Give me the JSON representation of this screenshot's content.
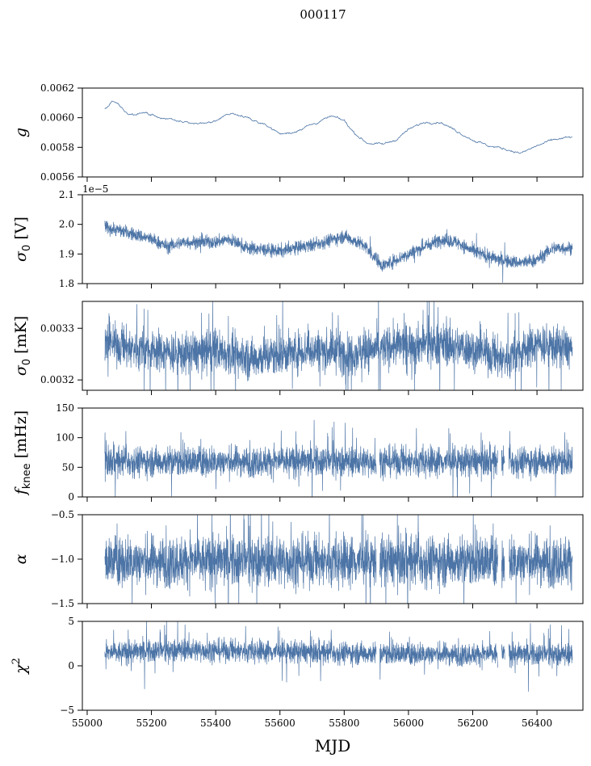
{
  "chart_data": {
    "type": "line",
    "title": "000117",
    "xlabel": "MJD",
    "xlim": [
      54985,
      56543
    ],
    "xticks": [
      55000,
      55200,
      55400,
      55600,
      55800,
      56000,
      56200,
      56400
    ],
    "x_range": [
      55055,
      56510
    ],
    "gaps": [
      [
        55900,
        55910
      ],
      [
        56278,
        56290
      ],
      [
        56300,
        56312
      ]
    ],
    "color": "#4c74a6",
    "panels": [
      {
        "name": "g",
        "ylabel": {
          "main": "g",
          "sub": "",
          "sup": "",
          "rest": ""
        },
        "ylim": [
          0.0056,
          0.0062
        ],
        "yticks": [
          0.0056,
          0.0058,
          0.006,
          0.0062
        ],
        "yticklabels": [
          "0.0056",
          "0.0058",
          "0.0060",
          "0.0062"
        ],
        "offset_text": "",
        "noise": 6e-06,
        "spike": 0,
        "trend": [
          [
            55055,
            0.00606
          ],
          [
            55080,
            0.00611
          ],
          [
            55100,
            0.00608
          ],
          [
            55130,
            0.00602
          ],
          [
            55170,
            0.00603
          ],
          [
            55200,
            0.00602
          ],
          [
            55250,
            0.00599
          ],
          [
            55300,
            0.00597
          ],
          [
            55350,
            0.00596
          ],
          [
            55400,
            0.00597
          ],
          [
            55440,
            0.00603
          ],
          [
            55480,
            0.00602
          ],
          [
            55520,
            0.00598
          ],
          [
            55560,
            0.00595
          ],
          [
            55600,
            0.00589
          ],
          [
            55640,
            0.0059
          ],
          [
            55680,
            0.00594
          ],
          [
            55720,
            0.00597
          ],
          [
            55760,
            0.00601
          ],
          [
            55800,
            0.00598
          ],
          [
            55830,
            0.0059
          ],
          [
            55870,
            0.00583
          ],
          [
            55920,
            0.00582
          ],
          [
            55960,
            0.00585
          ],
          [
            56000,
            0.00592
          ],
          [
            56050,
            0.00597
          ],
          [
            56100,
            0.00597
          ],
          [
            56150,
            0.00591
          ],
          [
            56200,
            0.00585
          ],
          [
            56250,
            0.00581
          ],
          [
            56300,
            0.00579
          ],
          [
            56350,
            0.00576
          ],
          [
            56400,
            0.00581
          ],
          [
            56450,
            0.00585
          ],
          [
            56510,
            0.00587
          ]
        ]
      },
      {
        "name": "sigma0-v",
        "ylabel": {
          "main": "σ",
          "sub": "0",
          "sup": "",
          "rest": " [V]"
        },
        "ylim": [
          1.8e-05,
          2.1e-05
        ],
        "yticks": [
          1.8e-05,
          1.9e-05,
          2e-05,
          2.1e-05
        ],
        "yticklabels": [
          "1.8",
          "1.9",
          "2.0",
          "2.1"
        ],
        "offset_text": "1e−5",
        "noise": 1.6e-07,
        "spike": 0.01,
        "trend": [
          [
            55055,
            1.99e-05
          ],
          [
            55100,
            1.98e-05
          ],
          [
            55200,
            1.95e-05
          ],
          [
            55250,
            1.925e-05
          ],
          [
            55300,
            1.94e-05
          ],
          [
            55400,
            1.94e-05
          ],
          [
            55440,
            1.95e-05
          ],
          [
            55500,
            1.92e-05
          ],
          [
            55600,
            1.91e-05
          ],
          [
            55700,
            1.93e-05
          ],
          [
            55800,
            1.96e-05
          ],
          [
            55860,
            1.93e-05
          ],
          [
            55920,
            1.86e-05
          ],
          [
            56000,
            1.9e-05
          ],
          [
            56100,
            1.95e-05
          ],
          [
            56150,
            1.94e-05
          ],
          [
            56200,
            1.91e-05
          ],
          [
            56280,
            1.88e-05
          ],
          [
            56350,
            1.87e-05
          ],
          [
            56400,
            1.88e-05
          ],
          [
            56450,
            1.92e-05
          ],
          [
            56510,
            1.92e-05
          ]
        ]
      },
      {
        "name": "sigma0-mk",
        "ylabel": {
          "main": "σ",
          "sub": "0",
          "sup": "",
          "rest": " [mK]"
        },
        "ylim": [
          0.00318,
          0.003352
        ],
        "yticks": [
          0.0032,
          0.0033
        ],
        "yticklabels": [
          "0.0032",
          "0.0033"
        ],
        "offset_text": "",
        "noise": 2.8e-05,
        "spike": 0.03,
        "trend": [
          [
            55055,
            0.003272
          ],
          [
            55150,
            0.00326
          ],
          [
            55300,
            0.00325
          ],
          [
            55400,
            0.003258
          ],
          [
            55500,
            0.00324
          ],
          [
            55600,
            0.00325
          ],
          [
            55700,
            0.00326
          ],
          [
            55800,
            0.00325
          ],
          [
            55900,
            0.00326
          ],
          [
            56000,
            0.00327
          ],
          [
            56100,
            0.00327
          ],
          [
            56200,
            0.00326
          ],
          [
            56300,
            0.00324
          ],
          [
            56400,
            0.00327
          ],
          [
            56510,
            0.00326
          ]
        ]
      },
      {
        "name": "fknee",
        "ylabel": {
          "main": "f",
          "sub": "knee",
          "sup": "",
          "rest": " [mHz]"
        },
        "ylim": [
          0,
          150
        ],
        "yticks": [
          0,
          50,
          100,
          150
        ],
        "yticklabels": [
          "0",
          "50",
          "100",
          "150"
        ],
        "offset_text": "",
        "noise": 18,
        "spike": 0.02,
        "trend": [
          [
            55055,
            60
          ],
          [
            56510,
            60
          ]
        ]
      },
      {
        "name": "alpha",
        "ylabel": {
          "main": "α",
          "sub": "",
          "sup": "",
          "rest": ""
        },
        "ylim": [
          -1.5,
          -0.5
        ],
        "yticks": [
          -1.5,
          -1.0,
          -0.5
        ],
        "yticklabels": [
          "−1.5",
          "−1.0",
          "−0.5"
        ],
        "offset_text": "",
        "noise": 0.2,
        "spike": 0.02,
        "trend": [
          [
            55055,
            -1.02
          ],
          [
            56510,
            -1.02
          ]
        ]
      },
      {
        "name": "chi2",
        "ylabel": {
          "main": "χ",
          "sub": "",
          "sup": "2",
          "rest": ""
        },
        "ylim": [
          -5,
          5
        ],
        "yticks": [
          -5,
          0,
          5
        ],
        "yticklabels": [
          "−5",
          "0",
          "5"
        ],
        "offset_text": "",
        "noise": 0.9,
        "spike": 0.02,
        "trend": [
          [
            55055,
            1.4
          ],
          [
            55300,
            1.8
          ],
          [
            55600,
            1.6
          ],
          [
            55900,
            1.4
          ],
          [
            56200,
            1.3
          ],
          [
            56510,
            1.3
          ]
        ]
      }
    ]
  }
}
